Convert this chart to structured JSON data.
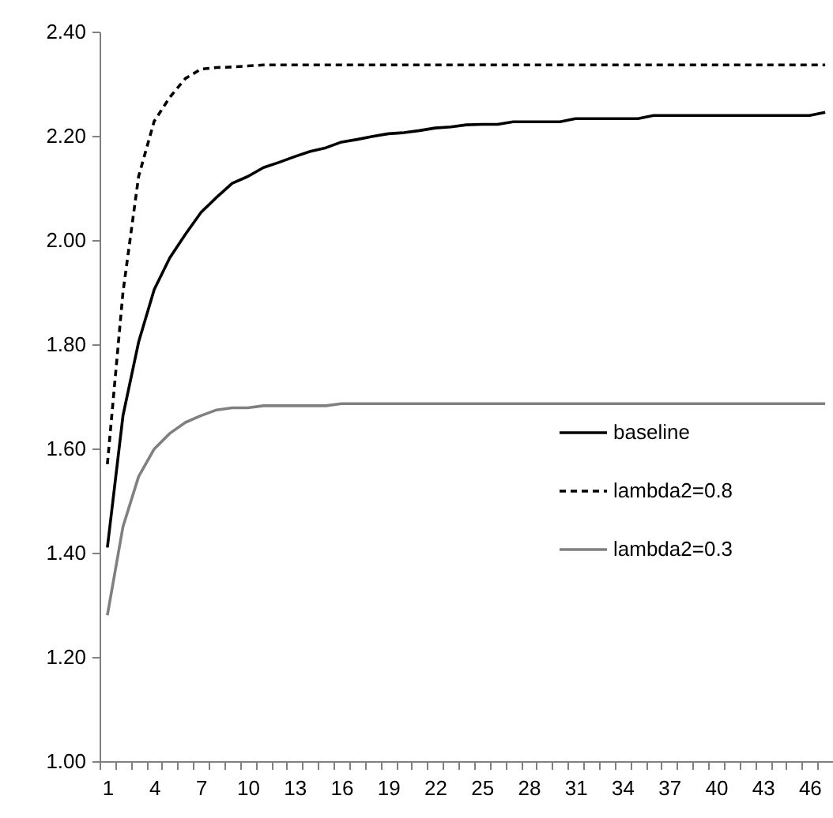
{
  "chart_data": {
    "type": "line",
    "categories": [
      "1",
      null,
      null,
      "4",
      null,
      null,
      "7",
      null,
      null,
      "10",
      null,
      null,
      "13",
      null,
      null,
      "16",
      null,
      null,
      "19",
      null,
      null,
      "22",
      null,
      null,
      "25",
      null,
      null,
      "28",
      null,
      null,
      "31",
      null,
      null,
      "34",
      null,
      null,
      "37",
      null,
      null,
      "40",
      null,
      null,
      "43",
      null,
      null,
      "46",
      null
    ],
    "series": [
      {
        "name": "baseline",
        "color": "#000000",
        "line_style": "solid",
        "values": [
          1.41,
          1.663,
          1.804,
          1.905,
          1.966,
          2.011,
          2.053,
          2.082,
          2.109,
          2.122,
          2.139,
          2.149,
          2.16,
          2.17,
          2.177,
          2.188,
          2.193,
          2.199,
          2.204,
          2.206,
          2.21,
          2.215,
          2.217,
          2.221,
          2.222,
          2.222,
          2.227,
          2.227,
          2.227,
          2.227,
          2.233,
          2.233,
          2.233,
          2.233,
          2.233,
          2.239,
          2.239,
          2.239,
          2.239,
          2.239,
          2.239,
          2.239,
          2.239,
          2.239,
          2.239,
          2.239,
          2.245
        ]
      },
      {
        "name": "lambda2=0.8",
        "color": "#000000",
        "line_style": "dashed",
        "values": [
          1.57,
          1.9,
          2.122,
          2.228,
          2.274,
          2.31,
          2.328,
          2.331,
          2.332,
          2.334,
          2.336,
          2.336,
          2.336,
          2.336,
          2.336,
          2.336,
          2.336,
          2.336,
          2.336,
          2.336,
          2.336,
          2.336,
          2.336,
          2.336,
          2.336,
          2.336,
          2.336,
          2.336,
          2.336,
          2.336,
          2.336,
          2.336,
          2.336,
          2.336,
          2.336,
          2.336,
          2.336,
          2.336,
          2.336,
          2.336,
          2.336,
          2.336,
          2.336,
          2.336,
          2.336,
          2.336,
          2.336
        ]
      },
      {
        "name": "lambda2=0.3",
        "color": "#808080",
        "line_style": "solid",
        "values": [
          1.28,
          1.45,
          1.546,
          1.599,
          1.629,
          1.65,
          1.663,
          1.674,
          1.678,
          1.678,
          1.682,
          1.682,
          1.682,
          1.682,
          1.682,
          1.686,
          1.686,
          1.686,
          1.686,
          1.686,
          1.686,
          1.686,
          1.686,
          1.686,
          1.686,
          1.686,
          1.686,
          1.686,
          1.686,
          1.686,
          1.686,
          1.686,
          1.686,
          1.686,
          1.686,
          1.686,
          1.686,
          1.686,
          1.686,
          1.686,
          1.686,
          1.686,
          1.686,
          1.686,
          1.686,
          1.686,
          1.686
        ]
      }
    ],
    "ylim": [
      1.0,
      2.4
    ],
    "yticks": [
      {
        "value": 1.0,
        "label": "1.00"
      },
      {
        "value": 1.2,
        "label": "1.20"
      },
      {
        "value": 1.4,
        "label": "1.40"
      },
      {
        "value": 1.6,
        "label": "1.60"
      },
      {
        "value": 1.8,
        "label": "1.80"
      },
      {
        "value": 2.0,
        "label": "2.00"
      },
      {
        "value": 2.2,
        "label": "2.20"
      },
      {
        "value": 2.4,
        "label": "2.40"
      }
    ],
    "legend": "right"
  }
}
